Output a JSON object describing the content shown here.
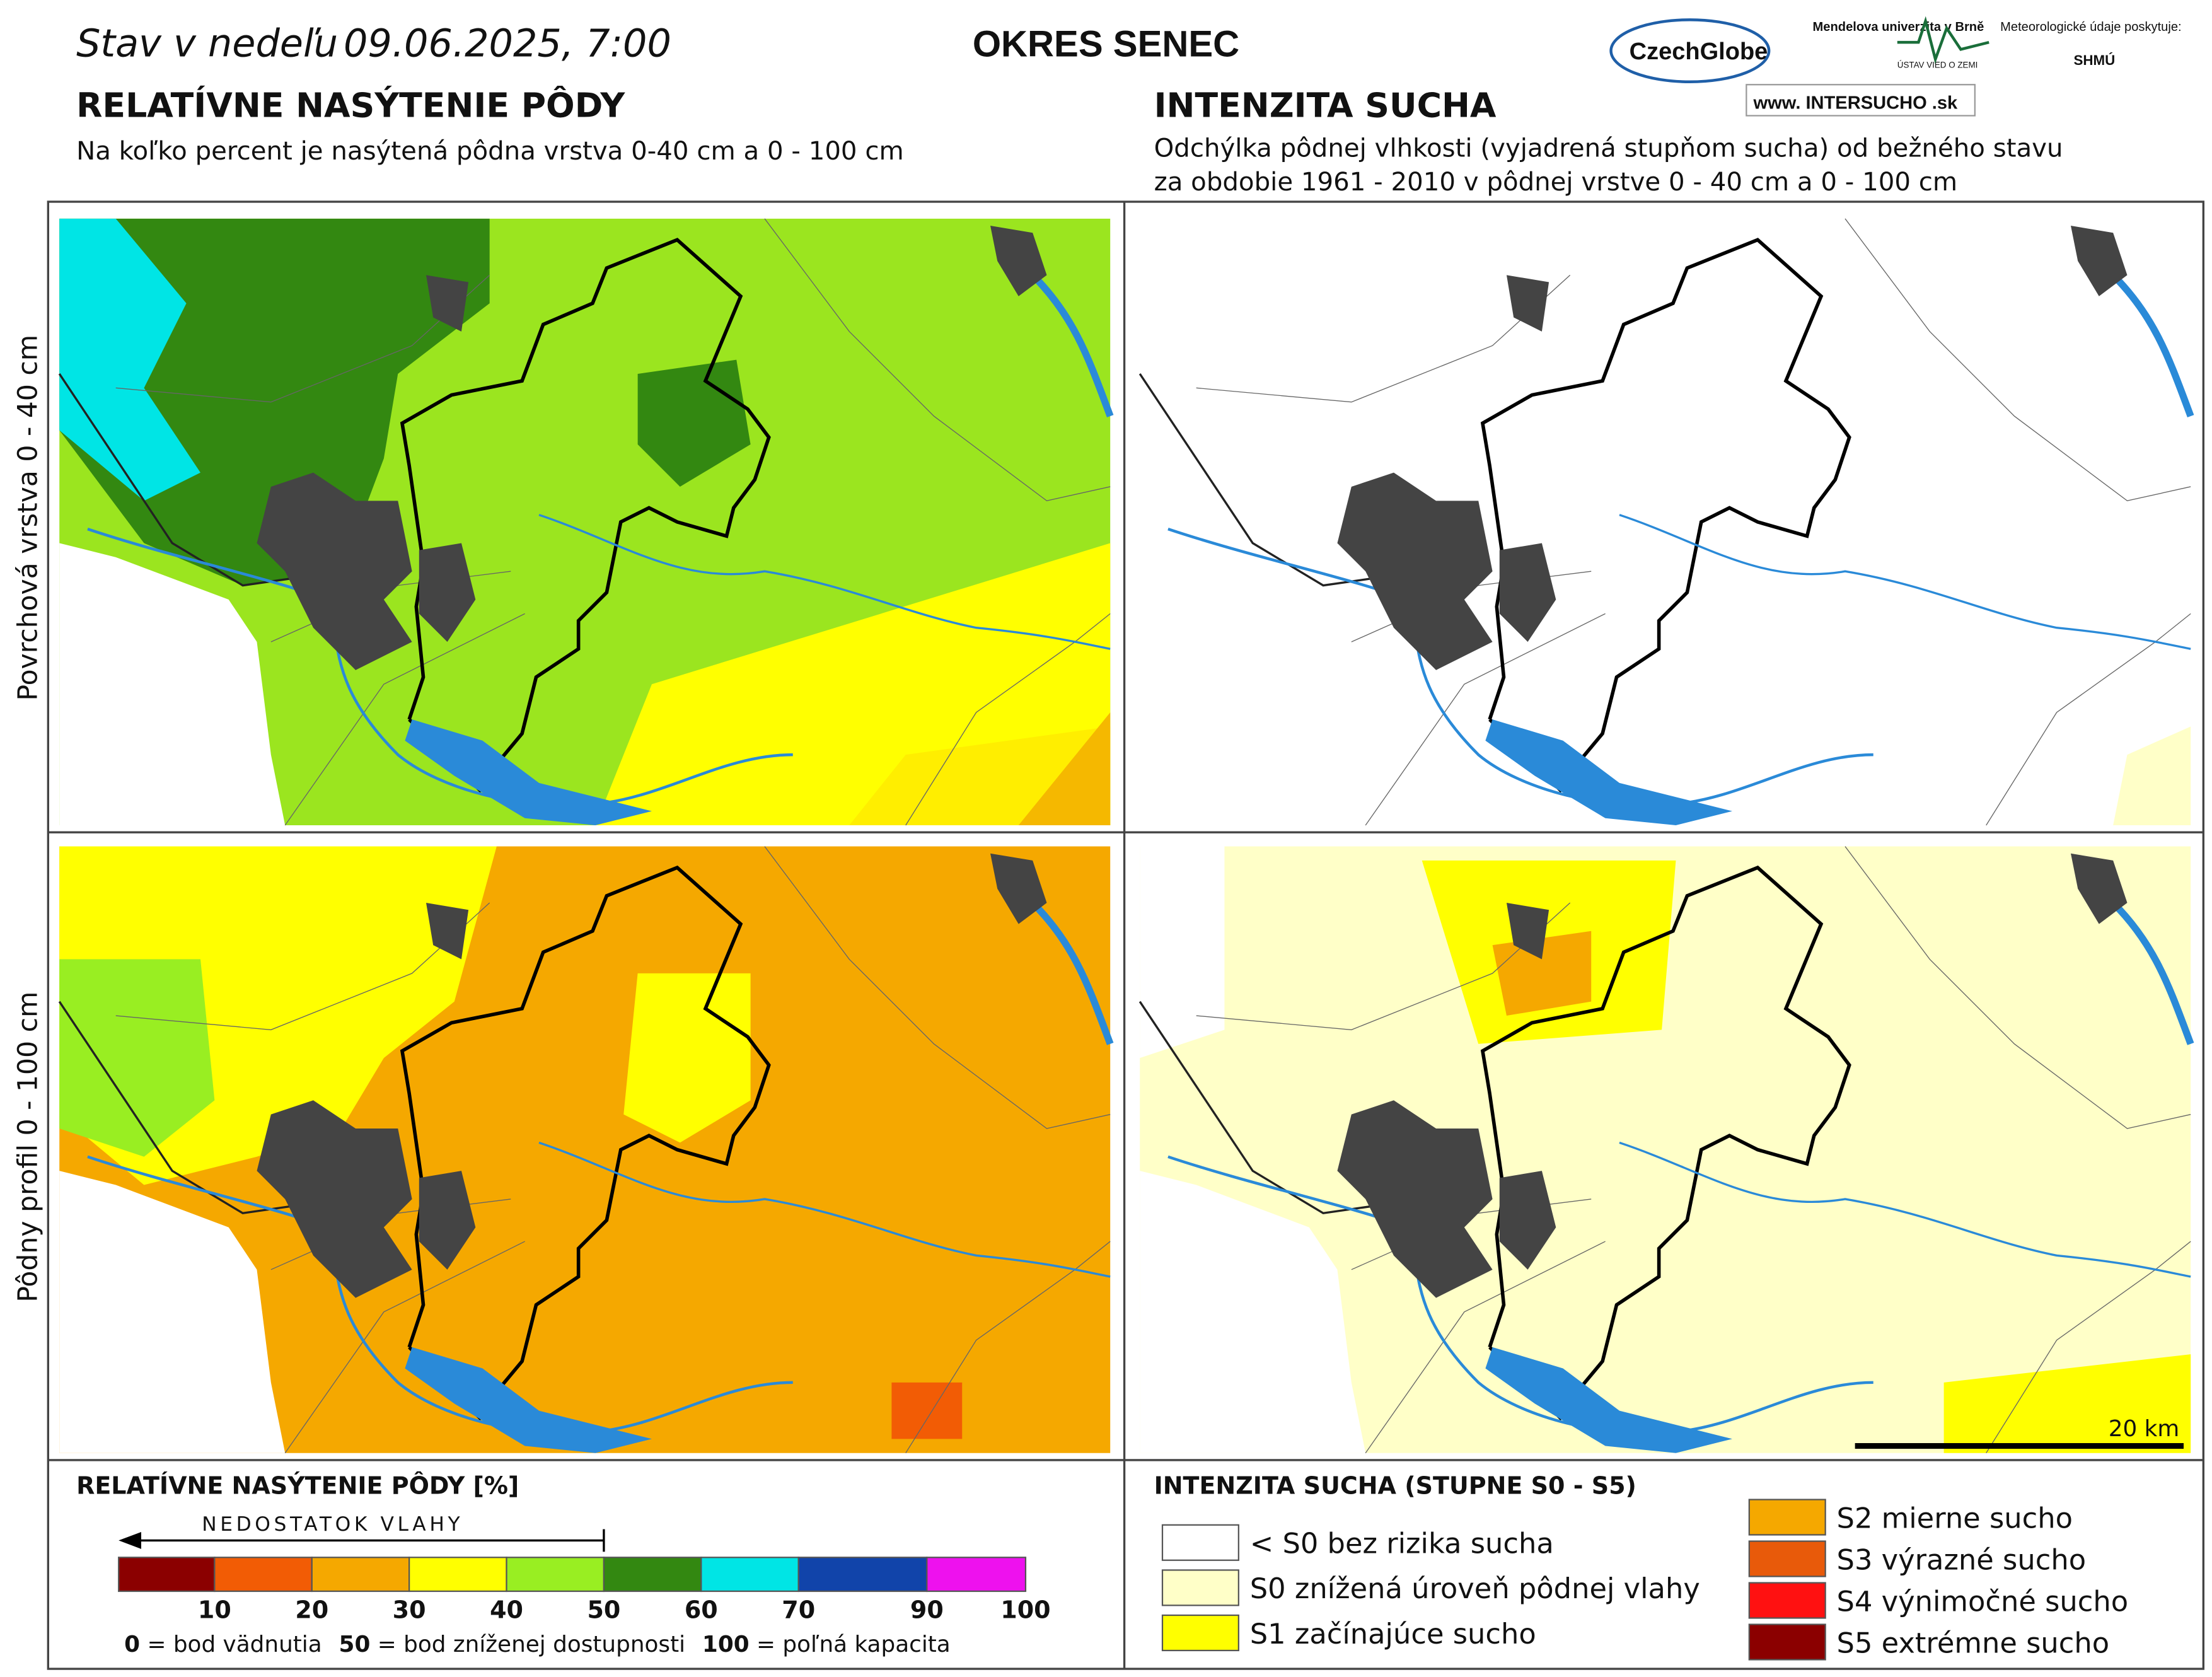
{
  "header": {
    "date_prefix": "Stav v nedeľu",
    "date": "09.06.2025, 7:00",
    "district": "OKRES  SENEC",
    "logos": [
      "CzechGlobe",
      "Mendelova univerzita v Brně",
      "ÚSTAV VIED O ZEMI",
      "Meteorologické údaje poskytuje:",
      "SHMÚ",
      "www. INTERSUCHO .sk"
    ]
  },
  "left": {
    "title": "RELATÍVNE NASÝTENIE PÔDY",
    "subtitle": "Na koľko percent je nasýtená pôdna vrstva 0-40 cm a 0 - 100 cm"
  },
  "right": {
    "title": "INTENZITA SUCHA",
    "subtitle_lines": [
      "Odchýlka pôdnej vlhkosti (vyjadrená stupňom sucha) od bežného stavu",
      "za obdobie 1961 - 2010 v pôdnej vrstve 0 - 40 cm a 0 - 100 cm"
    ]
  },
  "rows": [
    "Povrchová vrstva 0 - 40 cm",
    "Pôdny profil 0 - 100 cm"
  ],
  "scale_bar": "20 km",
  "legend_left": {
    "title": "RELATÍVNE NASÝTENIE PÔDY [%]",
    "arrow_label": "NEDOSTATOK VLAHY",
    "colors": [
      "#8b0000",
      "#f25c05",
      "#f5a800",
      "#ffff00",
      "#99ee22",
      "#338811",
      "#00e5e5",
      "#1144aa",
      "#ee11ee"
    ],
    "ticks": [
      "10",
      "20",
      "30",
      "40",
      "50",
      "60",
      "70",
      "90",
      "100"
    ],
    "notes": [
      {
        "num": "0",
        "text": " = bod vädnutia"
      },
      {
        "num": "50",
        "text": " = bod zníženej dostupnosti"
      },
      {
        "num": "100",
        "text": " = poľná kapacita"
      }
    ]
  },
  "legend_right": {
    "title": "INTENZITA SUCHA (STUPNE S0 - S5)",
    "items": [
      {
        "label": "< S0 bez rizika sucha",
        "color": "#ffffff"
      },
      {
        "label": "S0 znížená úroveň pôdnej vlahy",
        "color": "#ffffc8"
      },
      {
        "label": "S1 začínajúce sucho",
        "color": "#ffff00"
      },
      {
        "label": "S2 mierne sucho",
        "color": "#f5a800"
      },
      {
        "label": "S3 výrazné sucho",
        "color": "#e85a0a"
      },
      {
        "label": "S4 výnimočné sucho",
        "color": "#ff1111"
      },
      {
        "label": "S5 extrémne sucho",
        "color": "#8b0000"
      }
    ]
  }
}
